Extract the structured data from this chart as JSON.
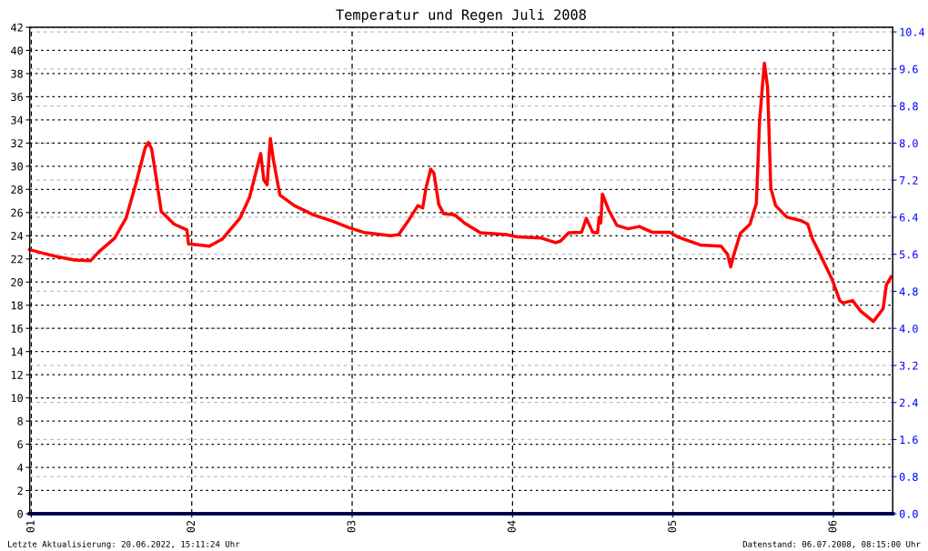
{
  "chart_data": {
    "type": "line",
    "title": "Temperatur und Regen Juli 2008",
    "xlim": [
      0.99,
      6.37
    ],
    "xticks": [
      {
        "value": 1,
        "label": "01"
      },
      {
        "value": 2,
        "label": "02"
      },
      {
        "value": 3,
        "label": "03"
      },
      {
        "value": 4,
        "label": "04"
      },
      {
        "value": 5,
        "label": "05"
      },
      {
        "value": 6,
        "label": "06"
      }
    ],
    "ylim": [
      0,
      42
    ],
    "yticks": [
      0,
      2,
      4,
      6,
      8,
      10,
      12,
      14,
      16,
      18,
      20,
      22,
      24,
      26,
      28,
      30,
      32,
      34,
      36,
      38,
      40,
      42
    ],
    "y2lim": [
      0,
      10.5
    ],
    "y2ticks": [
      {
        "value": 0,
        "label": "0.0"
      },
      0.8,
      1.6,
      2.4,
      3.2,
      {
        "value": 4,
        "label": "4.0"
      },
      4.8,
      5.6,
      6.4,
      7.2,
      {
        "value": 8,
        "label": "8.0"
      },
      8.8,
      9.6,
      10.4
    ],
    "grid": true,
    "marker": "none",
    "line_style": "solid",
    "series": [
      {
        "color": "#ff0000",
        "x": [
          0.99,
          1.07,
          1.16,
          1.27,
          1.37,
          1.42,
          1.52,
          1.59,
          1.65,
          1.71,
          1.73,
          1.75,
          1.78,
          1.81,
          1.89,
          1.97,
          1.98,
          2.05,
          2.11,
          2.19,
          2.3,
          2.36,
          2.43,
          2.45,
          2.47,
          2.49,
          2.51,
          2.55,
          2.64,
          2.76,
          2.88,
          2.98,
          3.07,
          3.09,
          3.24,
          3.29,
          3.36,
          3.41,
          3.44,
          3.46,
          3.49,
          3.51,
          3.54,
          3.57,
          3.64,
          3.7,
          3.8,
          3.96,
          4.03,
          4.18,
          4.27,
          4.3,
          4.35,
          4.43,
          4.46,
          4.5,
          4.53,
          4.54,
          4.55,
          4.56,
          4.6,
          4.65,
          4.72,
          4.79,
          4.87,
          4.98,
          5.03,
          5.17,
          5.3,
          5.34,
          5.36,
          5.38,
          5.42,
          5.48,
          5.52,
          5.54,
          5.56,
          5.57,
          5.59,
          5.61,
          5.64,
          5.71,
          5.8,
          5.84,
          5.87,
          5.91,
          5.99,
          6.04,
          6.06,
          6.12,
          6.17,
          6.25,
          6.31,
          6.33,
          6.36
        ],
        "values": [
          22.8,
          22.5,
          22.2,
          21.9,
          21.85,
          22.6,
          23.8,
          25.5,
          28.4,
          31.6,
          32.05,
          31.5,
          28.9,
          26.1,
          25.0,
          24.5,
          23.3,
          23.2,
          23.1,
          23.7,
          25.5,
          27.3,
          31.1,
          28.8,
          28.4,
          32.4,
          30.5,
          27.5,
          26.6,
          25.8,
          25.25,
          24.7,
          24.3,
          24.25,
          24.0,
          24.1,
          25.5,
          26.6,
          26.4,
          28.1,
          29.75,
          29.4,
          26.7,
          25.9,
          25.8,
          25.1,
          24.25,
          24.1,
          23.9,
          23.8,
          23.4,
          23.55,
          24.25,
          24.3,
          25.5,
          24.3,
          24.25,
          25.6,
          25.1,
          27.6,
          26.2,
          24.9,
          24.6,
          24.8,
          24.3,
          24.3,
          23.9,
          23.2,
          23.1,
          22.4,
          21.3,
          22.4,
          24.2,
          25.0,
          26.8,
          33.9,
          37.3,
          38.9,
          36.8,
          28.1,
          26.6,
          25.6,
          25.3,
          25.0,
          23.7,
          22.6,
          20.3,
          18.4,
          18.2,
          18.4,
          17.5,
          16.6,
          17.7,
          19.75,
          20.45
        ]
      },
      {
        "color": "#00008b",
        "axis": "y2",
        "x": [
          0.99,
          6.37
        ],
        "values": [
          0,
          0
        ]
      }
    ],
    "annotations": [
      "Letzte Aktualisierung: 20.06.2022, 15:11:24 Uhr",
      "Datenstand: 06.07.2008, 08:15:00 Uhr"
    ]
  }
}
